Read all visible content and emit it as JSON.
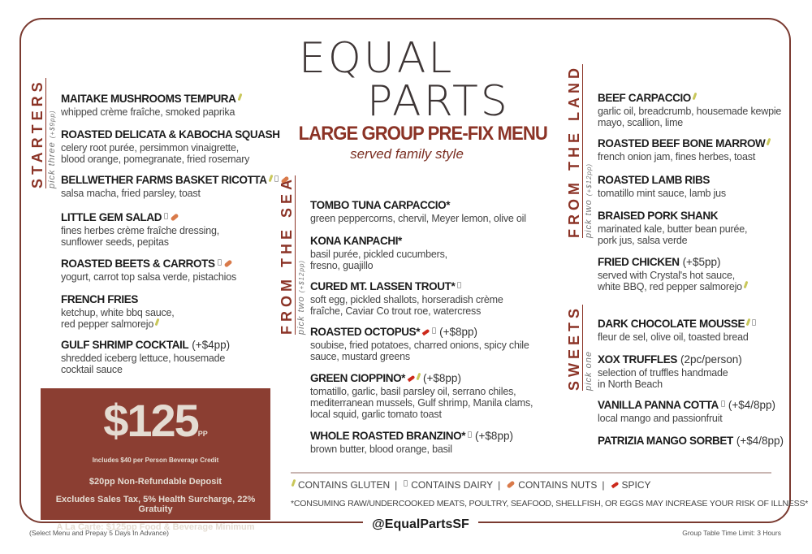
{
  "brand": {
    "line1": "EQUAL",
    "line2": "PARTS"
  },
  "title": "LARGE GROUP PRE-FIX MENU",
  "subtitle": "served family style",
  "colors": {
    "accent": "#8b3326",
    "price_box": "#8b3e32",
    "border": "#7a3a30",
    "gluten": "#c9c75a",
    "dairy": "#aaaaaa",
    "nuts": "#d97a4a",
    "spicy": "#cc2a1c"
  },
  "sections": [
    {
      "key": "starters",
      "label": "STARTERS",
      "pick": "pick three",
      "surcharge": "(+$9pp)",
      "items": [
        {
          "name": "MAITAKE MUSHROOMS TEMPURA",
          "icons": [
            "gluten"
          ],
          "price": "",
          "desc": "whipped crème fraîche, smoked paprika"
        },
        {
          "name": "ROASTED DELICATA & KABOCHA SQUASH",
          "icons": [],
          "price": "",
          "desc": "celery root purée, persimmon vinaigrette,\nblood orange, pomegranate, fried rosemary"
        },
        {
          "name": "BELLWETHER FARMS BASKET RICOTTA",
          "icons": [
            "gluten",
            "dairy",
            "nuts"
          ],
          "price": "",
          "desc": "salsa macha, fried parsley, toast"
        },
        {
          "name": "LITTLE GEM SALAD",
          "icons": [
            "dairy",
            "nuts"
          ],
          "price": "",
          "desc": "fines herbes crème fraîche dressing,\nsunflower seeds, pepitas"
        },
        {
          "name": "ROASTED BEETS & CARROTS",
          "icons": [
            "dairy",
            "nuts"
          ],
          "price": "",
          "desc": "yogurt, carrot top salsa verde, pistachios"
        },
        {
          "name": "FRENCH FRIES",
          "icons": [],
          "price": "",
          "desc": "ketchup, white bbq sauce,\nred pepper salmorejo",
          "desc_icons": [
            "gluten"
          ]
        },
        {
          "name": "GULF SHRIMP COCKTAIL",
          "icons": [],
          "price": "(+$4pp)",
          "desc": "shredded iceberg lettuce, housemade\ncocktail sauce"
        }
      ]
    },
    {
      "key": "sea",
      "label": "FROM THE SEA",
      "pick": "pick two",
      "surcharge": "(+$12pp)",
      "items": [
        {
          "name": "TOMBO TUNA CARPACCIO*",
          "icons": [],
          "price": "",
          "desc": "green peppercorns, chervil, Meyer lemon, olive oil"
        },
        {
          "name": "KONA KANPACHI*",
          "icons": [],
          "price": "",
          "desc": "basil purée, pickled cucumbers,\nfresno, guajillo"
        },
        {
          "name": "CURED MT. LASSEN TROUT*",
          "icons": [
            "dairy"
          ],
          "price": "",
          "desc": "soft egg, pickled shallots, horseradish crème\nfraîche, Caviar Co trout roe, watercress"
        },
        {
          "name": "ROASTED OCTOPUS*",
          "icons": [
            "spicy",
            "dairy"
          ],
          "price": "(+$8pp)",
          "desc": "soubise, fried potatoes, charred onions, spicy chile\nsauce, mustard greens"
        },
        {
          "name": "GREEN CIOPPINO*",
          "icons": [
            "spicy",
            "gluten"
          ],
          "price": "(+$8pp)",
          "desc": "tomatillo, garlic, basil parsley oil, serrano chiles,\nmediterranean mussels, Gulf shrimp, Manila clams,\nlocal squid, garlic tomato toast"
        },
        {
          "name": "WHOLE ROASTED BRANZINO*",
          "icons": [
            "dairy"
          ],
          "price": "(+$8pp)",
          "desc": "brown butter, blood orange, basil"
        }
      ]
    },
    {
      "key": "land",
      "label": "FROM THE LAND",
      "pick": "pick two",
      "surcharge": "(+$12pp)",
      "items": [
        {
          "name": "BEEF CARPACCIO",
          "icons": [
            "gluten"
          ],
          "price": "",
          "desc": "garlic oil, breadcrumb, housemade kewpie\nmayo, scallion, lime"
        },
        {
          "name": "ROASTED BEEF BONE MARROW",
          "icons": [
            "gluten"
          ],
          "price": "",
          "desc": "french onion jam, fines herbes, toast"
        },
        {
          "name": "ROASTED LAMB RIBS",
          "icons": [],
          "price": "",
          "desc": "tomatillo mint sauce, lamb jus"
        },
        {
          "name": "BRAISED PORK SHANK",
          "icons": [],
          "price": "",
          "desc": "marinated kale, butter bean purée,\npork jus, salsa verde"
        },
        {
          "name": "FRIED CHICKEN",
          "icons": [],
          "price": "(+$5pp)",
          "desc": "served with Crystal's hot sauce,\nwhite BBQ, red pepper salmorejo",
          "desc_icons": [
            "gluten"
          ]
        }
      ]
    },
    {
      "key": "sweets",
      "label": "SWEETS",
      "pick": "pick one",
      "surcharge": "",
      "items": [
        {
          "name": "DARK CHOCOLATE MOUSSE",
          "icons": [
            "gluten",
            "dairy"
          ],
          "price": "",
          "desc": "fleur de sel, olive oil, toasted bread"
        },
        {
          "name": "XOX TRUFFLES",
          "icons": [],
          "price": "(2pc/person)",
          "desc": "selection of truffles handmade\nin North Beach"
        },
        {
          "name": "VANILLA PANNA COTTA",
          "icons": [
            "dairy"
          ],
          "price": "(+$4/8pp)",
          "desc": "local mango and passionfruit"
        },
        {
          "name": "PATRIZIA MANGO SORBET",
          "icons": [],
          "price": "(+$4/8pp)",
          "desc": ""
        }
      ]
    }
  ],
  "price_box": {
    "amount": "$125",
    "unit": "PP",
    "credit": "Includes $40 per Person Beverage Credit",
    "lines": [
      "$20pp Non-Refundable Deposit",
      "Excludes Sales Tax, 5% Health Surcharge, 22% Gratuity",
      "A La Carte: $125pp Food & Beverage Minimum"
    ]
  },
  "legend": [
    {
      "icon": "gluten",
      "label": "CONTAINS GLUTEN"
    },
    {
      "icon": "dairy",
      "label": "CONTAINS DAIRY"
    },
    {
      "icon": "nuts",
      "label": "CONTAINS NUTS"
    },
    {
      "icon": "spicy",
      "label": "SPICY"
    }
  ],
  "legend_separator": "|",
  "disclaimer": "*CONSUMING RAW/UNDERCOOKED MEATS, POULTRY, SEAFOOD, SHELLFISH, OR EGGS MAY INCREASE YOUR RISK OF ILLNESS*",
  "footer": {
    "handle": "@EqualPartsSF",
    "left_note": "(Select Menu and Prepay 5 Days In Advance)",
    "right_note": "Group Table Time Limit: 3 Hours"
  }
}
